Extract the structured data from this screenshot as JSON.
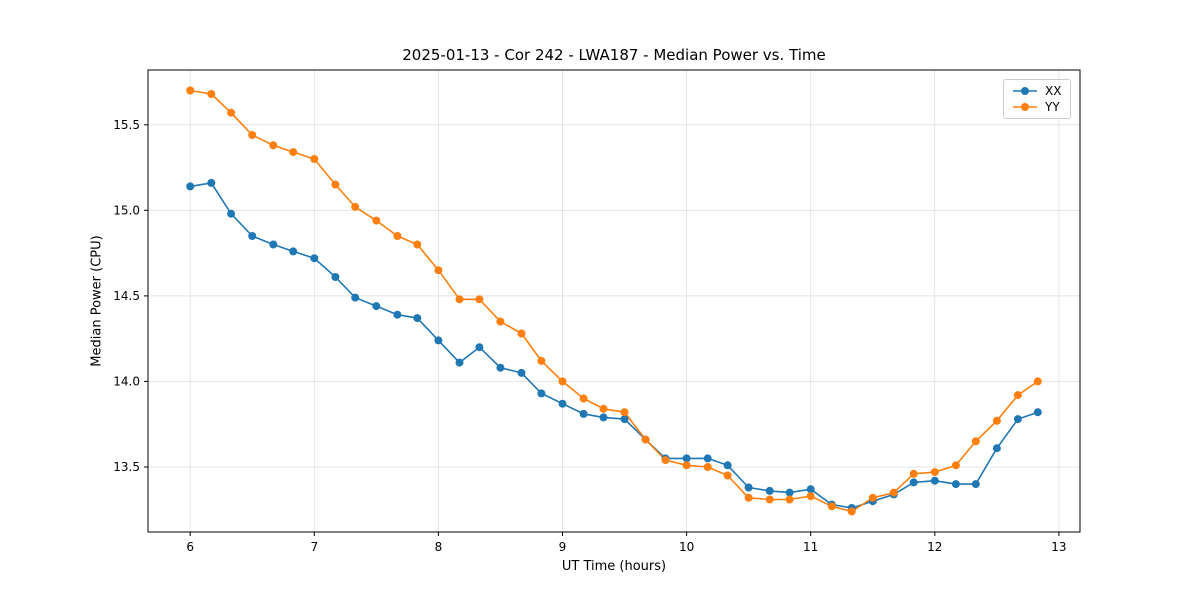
{
  "chart_data": {
    "type": "line",
    "title": "2025-01-13 - Cor 242 - LWA187 - Median Power vs. Time",
    "xlabel": "UT Time (hours)",
    "ylabel": "Median Power (CPU)",
    "xlim": [
      5.66,
      13.17
    ],
    "ylim": [
      13.12,
      15.82
    ],
    "xticks": [
      6,
      7,
      8,
      9,
      10,
      11,
      12,
      13
    ],
    "yticks": [
      13.5,
      14.0,
      14.5,
      15.0,
      15.5
    ],
    "grid": true,
    "legend_position": "upper right",
    "x": [
      6.0,
      6.17,
      6.33,
      6.5,
      6.67,
      6.83,
      7.0,
      7.17,
      7.33,
      7.5,
      7.67,
      7.83,
      8.0,
      8.17,
      8.33,
      8.5,
      8.67,
      8.83,
      9.0,
      9.17,
      9.33,
      9.5,
      9.67,
      9.83,
      10.0,
      10.17,
      10.33,
      10.5,
      10.67,
      10.83,
      11.0,
      11.17,
      11.33,
      11.5,
      11.67,
      11.83,
      12.0,
      12.17,
      12.33,
      12.5,
      12.67,
      12.83
    ],
    "series": [
      {
        "name": "XX",
        "color": "#1f77b4",
        "values": [
          15.14,
          15.16,
          14.98,
          14.85,
          14.8,
          14.76,
          14.72,
          14.61,
          14.49,
          14.44,
          14.39,
          14.37,
          14.24,
          14.11,
          14.2,
          14.08,
          14.05,
          13.93,
          13.87,
          13.81,
          13.79,
          13.78,
          13.66,
          13.55,
          13.55,
          13.55,
          13.51,
          13.38,
          13.36,
          13.35,
          13.37,
          13.28,
          13.26,
          13.3,
          13.34,
          13.41,
          13.42,
          13.4,
          13.4,
          13.61,
          13.78,
          13.82
        ]
      },
      {
        "name": "YY",
        "color": "#ff7f0e",
        "values": [
          15.7,
          15.68,
          15.57,
          15.44,
          15.38,
          15.34,
          15.3,
          15.15,
          15.02,
          14.94,
          14.85,
          14.8,
          14.65,
          14.48,
          14.48,
          14.35,
          14.28,
          14.12,
          14.0,
          13.9,
          13.84,
          13.82,
          13.66,
          13.54,
          13.51,
          13.5,
          13.45,
          13.32,
          13.31,
          13.31,
          13.33,
          13.27,
          13.24,
          13.32,
          13.35,
          13.46,
          13.47,
          13.51,
          13.65,
          13.77,
          13.92,
          14.0
        ]
      }
    ]
  }
}
